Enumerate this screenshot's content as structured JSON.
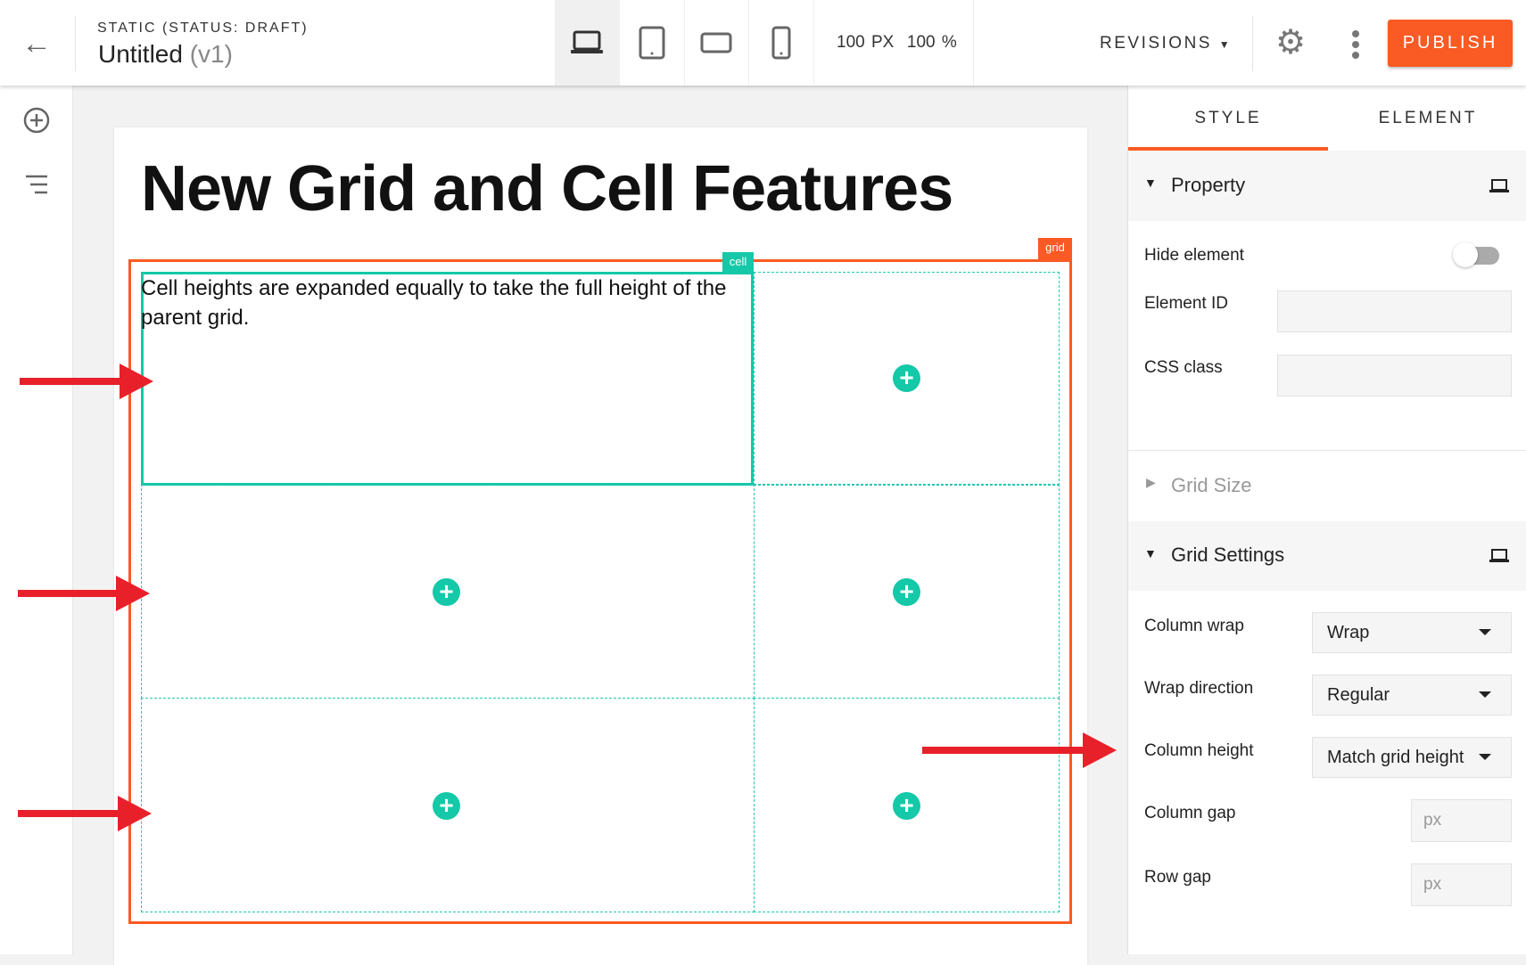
{
  "header": {
    "status": "STATIC (STATUS: DRAFT)",
    "title": "Untitled",
    "version": "(v1)",
    "width_readout": "100 PX",
    "zoom_readout": "100 %",
    "revisions_label": "REVISIONS",
    "publish_label": "PUBLISH",
    "devices": [
      "desktop-icon",
      "tablet-icon",
      "tablet-landscape-icon",
      "phone-icon"
    ]
  },
  "sidebar": {
    "icons": [
      "add-circle-icon",
      "layers-list-icon"
    ]
  },
  "canvas": {
    "heading": "New Grid and Cell Features",
    "cell_text": "Cell heights are expanded equally to take the full height of the parent grid.",
    "cell_tag": "cell",
    "grid_tag": "grid"
  },
  "panel": {
    "tabs": [
      "STYLE",
      "ELEMENT"
    ],
    "active_tab": "STYLE",
    "property": {
      "title": "Property",
      "hide_element": "Hide element",
      "hide_element_on": false,
      "element_id": "Element ID",
      "css_class": "CSS class"
    },
    "grid_size": {
      "title": "Grid Size"
    },
    "grid_settings": {
      "title": "Grid Settings",
      "column_wrap": {
        "label": "Column wrap",
        "value": "Wrap"
      },
      "wrap_direction": {
        "label": "Wrap direction",
        "value": "Regular"
      },
      "column_height": {
        "label": "Column height",
        "value": "Match grid height"
      },
      "column_gap": {
        "label": "Column gap",
        "placeholder": "px"
      },
      "row_gap": {
        "label": "Row gap",
        "placeholder": "px"
      }
    }
  },
  "colors": {
    "accent": "#fa5a23",
    "cell": "#14c8a8",
    "annotation_arrow": "#e8202a"
  }
}
